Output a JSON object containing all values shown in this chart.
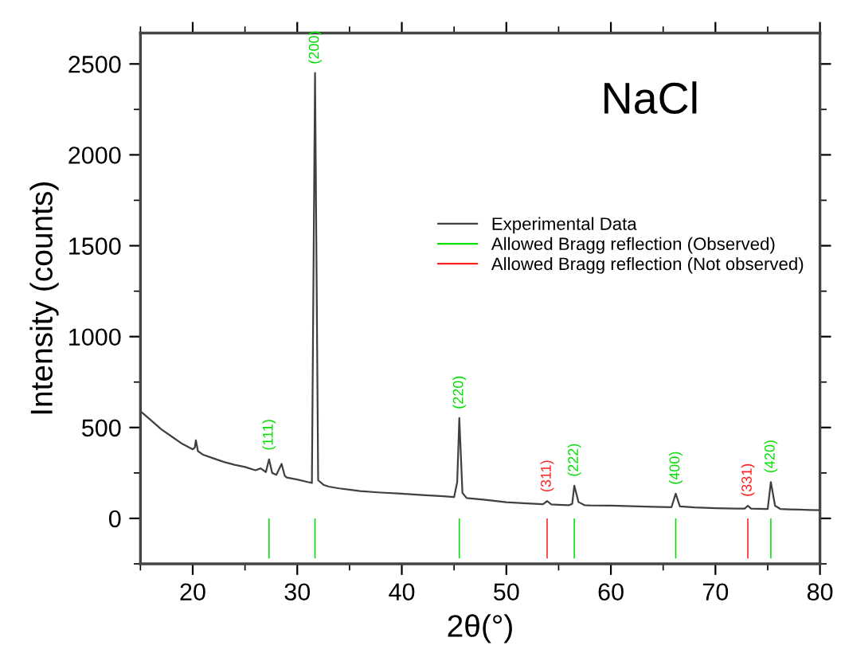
{
  "chart_data": {
    "type": "line",
    "xlabel": "2θ(°)",
    "ylabel": "Intensity (counts)",
    "xlim": [
      15,
      80
    ],
    "ylim": [
      -250,
      2670
    ],
    "xticks": [
      20,
      30,
      40,
      50,
      60,
      70,
      80
    ],
    "yticks": [
      0,
      500,
      1000,
      1500,
      2000,
      2500
    ],
    "legend": "right",
    "grid": false,
    "series": [
      {
        "name": "Experimental Data",
        "color": "#404040",
        "x": [
          15,
          16,
          17,
          18,
          19,
          20,
          20.2,
          20.3,
          20.5,
          21,
          22,
          23,
          24,
          25,
          26,
          26.5,
          27,
          27.3,
          27.6,
          28,
          28.5,
          28.8,
          29,
          30,
          31,
          31.4,
          31.7,
          32.0,
          32.5,
          33,
          34,
          35,
          36,
          38,
          40,
          42,
          44,
          45,
          45.3,
          45.5,
          45.8,
          46.2,
          47,
          48,
          50,
          52,
          53.5,
          53.9,
          54.3,
          55,
          56,
          56.3,
          56.5,
          56.9,
          57.5,
          58,
          60,
          62,
          64,
          65.8,
          66.2,
          66.6,
          68,
          70,
          72,
          72.8,
          73.1,
          73.4,
          74,
          75,
          75.3,
          75.7,
          76.2,
          77,
          78,
          79,
          80
        ],
        "values": [
          590,
          540,
          490,
          450,
          410,
          380,
          390,
          430,
          370,
          350,
          330,
          310,
          295,
          283,
          265,
          275,
          255,
          325,
          250,
          240,
          300,
          235,
          225,
          214,
          200,
          195,
          2450,
          210,
          185,
          175,
          165,
          158,
          150,
          142,
          136,
          128,
          122,
          117,
          200,
          552,
          140,
          112,
          108,
          102,
          89,
          82,
          78,
          95,
          77,
          75,
          73,
          80,
          180,
          90,
          72,
          71,
          70,
          67,
          64,
          62,
          136,
          66,
          60,
          56,
          54,
          54,
          70,
          54,
          53,
          52,
          200,
          70,
          52,
          50,
          48,
          46,
          45
        ]
      },
      {
        "name": "Allowed Bragg reflection (Observed)",
        "type": "bar",
        "color": "#00e000",
        "x": [
          27.3,
          31.7,
          45.5,
          56.5,
          66.2,
          75.3
        ],
        "values": [
          -220,
          -220,
          -220,
          -220,
          -220,
          -220
        ]
      },
      {
        "name": "Allowed Bragg reflection (Not observed)",
        "type": "bar",
        "color": "#ff2020",
        "x": [
          53.9,
          73.1
        ],
        "values": [
          -220,
          -220
        ]
      }
    ],
    "annotations": [
      "NaCl",
      {
        "text": "(111)",
        "x": 27.3,
        "y": 325
      },
      {
        "text": "(200)",
        "x": 31.7,
        "y": 2450
      },
      {
        "text": "(220)",
        "x": 45.5,
        "y": 552
      },
      {
        "text": "(311)",
        "x": 53.9,
        "y": 95
      },
      {
        "text": "(222)",
        "x": 56.5,
        "y": 180
      },
      {
        "text": "(400)",
        "x": 66.2,
        "y": 136
      },
      {
        "text": "(331)",
        "x": 73.1,
        "y": 70
      },
      {
        "text": "(420)",
        "x": 75.3,
        "y": 200
      }
    ]
  }
}
